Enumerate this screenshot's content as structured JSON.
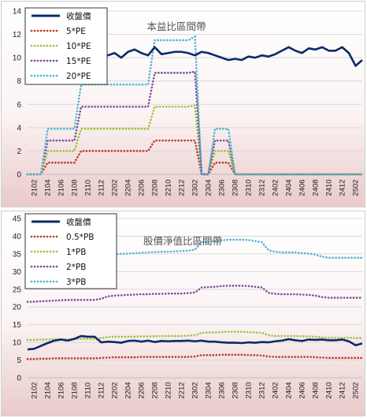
{
  "chart_data": [
    {
      "type": "line",
      "title": "本益比區間帶",
      "x": [
        "2101",
        "2102",
        "2103",
        "2104",
        "2105",
        "2106",
        "2107",
        "2108",
        "2109",
        "2110",
        "2111",
        "2112",
        "2201",
        "2202",
        "2203",
        "2204",
        "2205",
        "2206",
        "2207",
        "2208",
        "2209",
        "2210",
        "2211",
        "2212",
        "2301",
        "2302",
        "2303",
        "2304",
        "2305",
        "2306",
        "2307",
        "2308",
        "2309",
        "2310",
        "2311",
        "2312",
        "2401",
        "2402",
        "2403",
        "2404",
        "2405",
        "2406",
        "2407",
        "2408",
        "2409",
        "2410",
        "2411",
        "2412",
        "2501",
        "2502",
        "2503"
      ],
      "xticks": [
        "2102",
        "2104",
        "2106",
        "2108",
        "2110",
        "2112",
        "2202",
        "2204",
        "2206",
        "2208",
        "2210",
        "2212",
        "2302",
        "2304",
        "2306",
        "2308",
        "2310",
        "2312",
        "2402",
        "2404",
        "2406",
        "2408",
        "2410",
        "2412",
        "2502"
      ],
      "ylim": [
        0,
        14
      ],
      "yticks": [
        0,
        2,
        4,
        6,
        8,
        10,
        12,
        14
      ],
      "grid": true,
      "legend": "top-left",
      "series": [
        {
          "name": "收盤價",
          "color": "#0b2a6b",
          "style": "solid",
          "values": [
            null,
            null,
            null,
            null,
            null,
            null,
            null,
            null,
            null,
            null,
            10.2,
            10.2,
            10.2,
            10.4,
            10.0,
            10.5,
            10.7,
            10.4,
            10.2,
            10.9,
            10.3,
            10.4,
            10.5,
            10.5,
            10.4,
            10.2,
            10.5,
            10.4,
            10.2,
            10.0,
            9.8,
            9.9,
            9.8,
            10.1,
            10.0,
            10.2,
            10.1,
            10.3,
            10.6,
            10.9,
            10.6,
            10.4,
            10.8,
            10.7,
            10.9,
            10.6,
            10.6,
            10.9,
            10.4,
            9.3,
            9.8
          ]
        },
        {
          "name": "5*PE",
          "color": "#c0392b",
          "style": "dotted",
          "values": [
            0,
            0,
            0,
            1.0,
            1.0,
            1.0,
            1.0,
            1.0,
            2.0,
            2.0,
            2.0,
            2.0,
            2.0,
            2.0,
            2.0,
            2.0,
            2.0,
            2.0,
            2.0,
            2.9,
            2.9,
            2.9,
            2.9,
            2.9,
            2.9,
            2.9,
            0,
            0,
            1.0,
            1.0,
            1.0,
            0,
            0,
            0,
            0,
            0,
            0,
            0,
            0,
            0,
            0,
            0,
            0,
            0,
            0,
            0,
            0,
            0,
            0,
            0,
            0
          ]
        },
        {
          "name": "10*PE",
          "color": "#9bc33b",
          "style": "dotted",
          "values": [
            0,
            0,
            0,
            2.0,
            2.0,
            2.0,
            2.0,
            2.0,
            3.9,
            3.9,
            3.9,
            3.9,
            3.9,
            3.9,
            3.9,
            3.9,
            3.9,
            3.9,
            3.9,
            5.8,
            5.8,
            5.8,
            5.8,
            5.8,
            5.8,
            5.9,
            0,
            0,
            2.0,
            2.0,
            2.0,
            0,
            0,
            0,
            0,
            0,
            0,
            0,
            0,
            0,
            0,
            0,
            0,
            0,
            0,
            0,
            0,
            0,
            0,
            0,
            0
          ]
        },
        {
          "name": "15*PE",
          "color": "#7a4ba0",
          "style": "dotted",
          "values": [
            0,
            0,
            0,
            2.9,
            2.9,
            2.9,
            2.9,
            2.9,
            5.8,
            5.8,
            5.8,
            5.8,
            5.8,
            5.8,
            5.8,
            5.8,
            5.8,
            5.8,
            5.8,
            8.7,
            8.7,
            8.7,
            8.7,
            8.7,
            8.7,
            8.8,
            0,
            0,
            2.9,
            2.9,
            2.9,
            0,
            0,
            0,
            0,
            0,
            0,
            0,
            0,
            0,
            0,
            0,
            0,
            0,
            0,
            0,
            0,
            0,
            0,
            0,
            0
          ]
        },
        {
          "name": "20*PE",
          "color": "#4bb6cf",
          "style": "dotted",
          "values": [
            0,
            0,
            0,
            3.9,
            3.9,
            3.9,
            3.9,
            3.9,
            7.7,
            7.7,
            7.7,
            7.7,
            7.7,
            7.7,
            7.7,
            7.7,
            7.7,
            7.7,
            7.7,
            11.5,
            11.5,
            11.5,
            11.5,
            11.5,
            11.5,
            11.8,
            0,
            0,
            3.9,
            3.9,
            3.9,
            0,
            0,
            0,
            0,
            0,
            0,
            0,
            0,
            0,
            0,
            0,
            0,
            0,
            0,
            0,
            0,
            0,
            0,
            0,
            0
          ]
        }
      ]
    },
    {
      "type": "line",
      "title": "股價淨值比區間帶",
      "x": [
        "2101",
        "2102",
        "2103",
        "2104",
        "2105",
        "2106",
        "2107",
        "2108",
        "2109",
        "2110",
        "2111",
        "2112",
        "2201",
        "2202",
        "2203",
        "2204",
        "2205",
        "2206",
        "2207",
        "2208",
        "2209",
        "2210",
        "2211",
        "2212",
        "2301",
        "2302",
        "2303",
        "2304",
        "2305",
        "2306",
        "2307",
        "2308",
        "2309",
        "2310",
        "2311",
        "2312",
        "2401",
        "2402",
        "2403",
        "2404",
        "2405",
        "2406",
        "2407",
        "2408",
        "2409",
        "2410",
        "2411",
        "2412",
        "2501",
        "2502",
        "2503"
      ],
      "xticks": [
        "2102",
        "2104",
        "2106",
        "2108",
        "2110",
        "2112",
        "2202",
        "2204",
        "2206",
        "2208",
        "2210",
        "2212",
        "2302",
        "2304",
        "2306",
        "2308",
        "2310",
        "2312",
        "2402",
        "2404",
        "2406",
        "2408",
        "2410",
        "2412",
        "2502"
      ],
      "ylim": [
        0,
        45
      ],
      "yticks": [
        0,
        5,
        10,
        15,
        20,
        25,
        30,
        35,
        40,
        45
      ],
      "grid": true,
      "legend": "top-left",
      "series": [
        {
          "name": "收盤價",
          "color": "#0b2a6b",
          "style": "solid",
          "values": [
            8.0,
            8.2,
            9.0,
            9.8,
            10.5,
            10.8,
            10.5,
            11.0,
            11.8,
            11.6,
            11.6,
            10.0,
            10.2,
            10.1,
            9.9,
            10.4,
            10.5,
            10.2,
            10.5,
            10.1,
            10.4,
            10.3,
            10.4,
            10.4,
            10.5,
            10.3,
            10.5,
            10.2,
            10.2,
            10.0,
            9.9,
            9.9,
            9.8,
            10.0,
            9.9,
            10.1,
            10.0,
            10.3,
            10.5,
            10.9,
            10.6,
            10.4,
            10.8,
            10.7,
            10.8,
            10.6,
            10.6,
            10.8,
            10.3,
            9.2,
            9.7
          ]
        },
        {
          "name": "0.5*PB",
          "color": "#c0392b",
          "style": "dotted",
          "values": [
            5.3,
            5.3,
            5.4,
            5.4,
            5.5,
            5.5,
            5.5,
            5.5,
            5.5,
            5.5,
            5.5,
            5.6,
            5.7,
            5.8,
            5.8,
            5.8,
            5.8,
            5.9,
            5.9,
            5.9,
            5.9,
            5.9,
            5.9,
            5.9,
            5.9,
            6.0,
            6.4,
            6.4,
            6.4,
            6.5,
            6.5,
            6.5,
            6.5,
            6.4,
            6.4,
            6.3,
            6.0,
            5.9,
            5.9,
            5.9,
            5.9,
            5.9,
            5.9,
            5.8,
            5.7,
            5.6,
            5.6,
            5.6,
            5.6,
            5.6,
            5.6
          ]
        },
        {
          "name": "1*PB",
          "color": "#9bc33b",
          "style": "dotted",
          "values": [
            10.7,
            10.7,
            10.8,
            10.8,
            10.9,
            10.9,
            10.9,
            11.0,
            11.0,
            11.0,
            11.0,
            11.2,
            11.5,
            11.6,
            11.6,
            11.6,
            11.6,
            11.7,
            11.7,
            11.7,
            11.8,
            11.8,
            11.8,
            11.8,
            11.9,
            12.0,
            12.7,
            12.8,
            12.8,
            12.9,
            13.0,
            13.0,
            13.0,
            12.9,
            12.8,
            12.7,
            12.0,
            11.8,
            11.8,
            11.8,
            11.8,
            11.7,
            11.7,
            11.6,
            11.4,
            11.3,
            11.3,
            11.3,
            11.3,
            11.2,
            11.2
          ]
        },
        {
          "name": "2*PB",
          "color": "#7a4ba0",
          "style": "dotted",
          "values": [
            21.5,
            21.5,
            21.6,
            21.7,
            21.8,
            21.9,
            22.0,
            22.0,
            22.0,
            22.0,
            22.0,
            22.3,
            23.0,
            23.2,
            23.3,
            23.4,
            23.5,
            23.6,
            23.6,
            23.7,
            23.7,
            23.8,
            23.8,
            23.8,
            23.9,
            24.1,
            25.5,
            25.6,
            25.7,
            25.9,
            26.0,
            26.0,
            26.0,
            25.9,
            25.7,
            25.5,
            24.0,
            23.7,
            23.6,
            23.6,
            23.6,
            23.5,
            23.4,
            23.2,
            22.8,
            22.6,
            22.6,
            22.6,
            22.6,
            22.6,
            22.6
          ]
        },
        {
          "name": "3*PB",
          "color": "#4bb6cf",
          "style": "dotted",
          "values": [
            32.2,
            32.3,
            32.4,
            32.6,
            32.8,
            32.9,
            33.0,
            33.0,
            33.0,
            33.0,
            33.0,
            33.5,
            34.6,
            34.9,
            35.0,
            35.1,
            35.2,
            35.3,
            35.4,
            35.5,
            35.6,
            35.6,
            35.7,
            35.8,
            35.9,
            36.2,
            38.3,
            38.5,
            38.6,
            38.8,
            39.0,
            39.0,
            39.0,
            38.9,
            38.6,
            38.3,
            36.0,
            35.6,
            35.4,
            35.4,
            35.4,
            35.2,
            35.1,
            34.8,
            34.2,
            33.9,
            33.9,
            33.9,
            33.9,
            33.9,
            33.9
          ]
        }
      ]
    }
  ]
}
